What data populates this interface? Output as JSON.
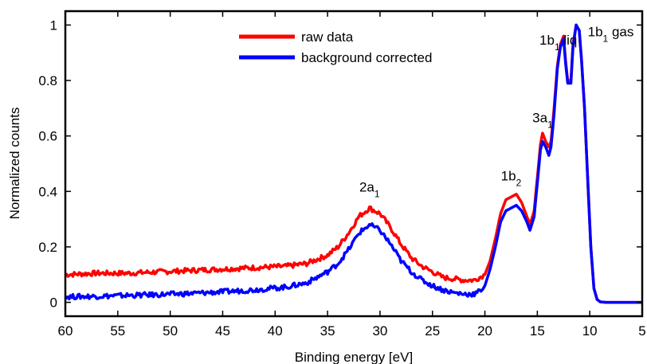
{
  "chart_data": {
    "type": "line",
    "title": "",
    "xlabel": "Binding energy [eV]",
    "ylabel": "Normalized counts",
    "xlim": [
      60,
      5
    ],
    "ylim": [
      -0.05,
      1.05
    ],
    "x_reversed": true,
    "grid": false,
    "legend_position": "top-center",
    "x_ticks": [
      60,
      55,
      50,
      45,
      40,
      35,
      30,
      25,
      20,
      15,
      10,
      5
    ],
    "y_ticks": [
      0,
      0.2,
      0.4,
      0.6,
      0.8,
      1
    ],
    "series": [
      {
        "name": "raw data",
        "color": "#ff0000",
        "points": [
          [
            60,
            0.1
          ],
          [
            57,
            0.105
          ],
          [
            54,
            0.105
          ],
          [
            51,
            0.11
          ],
          [
            48,
            0.115
          ],
          [
            45,
            0.12
          ],
          [
            42,
            0.125
          ],
          [
            39,
            0.13
          ],
          [
            37,
            0.14
          ],
          [
            35,
            0.17
          ],
          [
            34,
            0.2
          ],
          [
            33,
            0.25
          ],
          [
            32,
            0.31
          ],
          [
            31,
            0.34
          ],
          [
            30,
            0.32
          ],
          [
            29,
            0.27
          ],
          [
            28,
            0.21
          ],
          [
            27,
            0.16
          ],
          [
            26,
            0.13
          ],
          [
            25,
            0.11
          ],
          [
            24,
            0.09
          ],
          [
            23,
            0.085
          ],
          [
            22,
            0.08
          ],
          [
            21,
            0.08
          ],
          [
            20.5,
            0.09
          ],
          [
            20,
            0.1
          ],
          [
            19.5,
            0.15
          ],
          [
            19,
            0.23
          ],
          [
            18.5,
            0.32
          ],
          [
            18,
            0.37
          ],
          [
            17.5,
            0.38
          ],
          [
            17,
            0.39
          ],
          [
            16.5,
            0.36
          ],
          [
            16,
            0.31
          ],
          [
            15.7,
            0.28
          ],
          [
            15.3,
            0.33
          ],
          [
            15,
            0.45
          ],
          [
            14.7,
            0.57
          ],
          [
            14.5,
            0.61
          ],
          [
            14.2,
            0.58
          ],
          [
            13.9,
            0.56
          ],
          [
            13.7,
            0.58
          ],
          [
            13.4,
            0.7
          ],
          [
            13.1,
            0.85
          ],
          [
            12.8,
            0.93
          ],
          [
            12.5,
            0.96
          ],
          [
            12.3,
            0.87
          ],
          [
            12.1,
            0.8
          ],
          [
            11.8,
            0.8
          ],
          [
            11.6,
            0.93
          ],
          [
            11.3,
            1.0
          ],
          [
            11,
            0.98
          ],
          [
            10.8,
            0.88
          ],
          [
            10.5,
            0.7
          ],
          [
            10.2,
            0.45
          ],
          [
            9.9,
            0.2
          ],
          [
            9.6,
            0.05
          ],
          [
            9.3,
            0.01
          ],
          [
            9,
            0.002
          ],
          [
            8.5,
            0.0
          ],
          [
            5,
            0.0
          ]
        ]
      },
      {
        "name": "background corrected",
        "color": "#0000ff",
        "points": [
          [
            60,
            0.02
          ],
          [
            57,
            0.022
          ],
          [
            54,
            0.025
          ],
          [
            51,
            0.028
          ],
          [
            48,
            0.032
          ],
          [
            45,
            0.038
          ],
          [
            42,
            0.045
          ],
          [
            39,
            0.055
          ],
          [
            37,
            0.07
          ],
          [
            35,
            0.11
          ],
          [
            34,
            0.14
          ],
          [
            33,
            0.19
          ],
          [
            32,
            0.25
          ],
          [
            31,
            0.28
          ],
          [
            30,
            0.26
          ],
          [
            29,
            0.21
          ],
          [
            28,
            0.15
          ],
          [
            27,
            0.11
          ],
          [
            26,
            0.08
          ],
          [
            25,
            0.06
          ],
          [
            24,
            0.045
          ],
          [
            23,
            0.035
          ],
          [
            22,
            0.03
          ],
          [
            21,
            0.03
          ],
          [
            20.5,
            0.04
          ],
          [
            20,
            0.06
          ],
          [
            19.5,
            0.12
          ],
          [
            19,
            0.2
          ],
          [
            18.5,
            0.29
          ],
          [
            18,
            0.33
          ],
          [
            17.5,
            0.34
          ],
          [
            17,
            0.35
          ],
          [
            16.5,
            0.33
          ],
          [
            16,
            0.29
          ],
          [
            15.7,
            0.26
          ],
          [
            15.3,
            0.31
          ],
          [
            15,
            0.43
          ],
          [
            14.7,
            0.55
          ],
          [
            14.5,
            0.58
          ],
          [
            14.2,
            0.56
          ],
          [
            13.9,
            0.53
          ],
          [
            13.7,
            0.56
          ],
          [
            13.4,
            0.68
          ],
          [
            13.1,
            0.84
          ],
          [
            12.8,
            0.92
          ],
          [
            12.5,
            0.95
          ],
          [
            12.3,
            0.86
          ],
          [
            12.1,
            0.79
          ],
          [
            11.8,
            0.79
          ],
          [
            11.6,
            0.92
          ],
          [
            11.3,
            1.0
          ],
          [
            11,
            0.98
          ],
          [
            10.8,
            0.88
          ],
          [
            10.5,
            0.7
          ],
          [
            10.2,
            0.45
          ],
          [
            9.9,
            0.2
          ],
          [
            9.6,
            0.05
          ],
          [
            9.3,
            0.01
          ],
          [
            9,
            0.002
          ],
          [
            8.5,
            0.0
          ],
          [
            5,
            0.0
          ]
        ]
      }
    ],
    "annotations": [
      {
        "base": "2a",
        "sub": "1",
        "suffix": "",
        "x": 31,
        "y": 0.4
      },
      {
        "base": "1b",
        "sub": "2",
        "suffix": "",
        "x": 17.5,
        "y": 0.44
      },
      {
        "base": "3a",
        "sub": "1",
        "suffix": "",
        "x": 14.5,
        "y": 0.65
      },
      {
        "base": "1b",
        "sub": "1",
        "suffix": " liq",
        "x": 13,
        "y": 0.93
      },
      {
        "base": "1b",
        "sub": "1",
        "suffix": " gas",
        "x": 8,
        "y": 0.96
      }
    ]
  }
}
